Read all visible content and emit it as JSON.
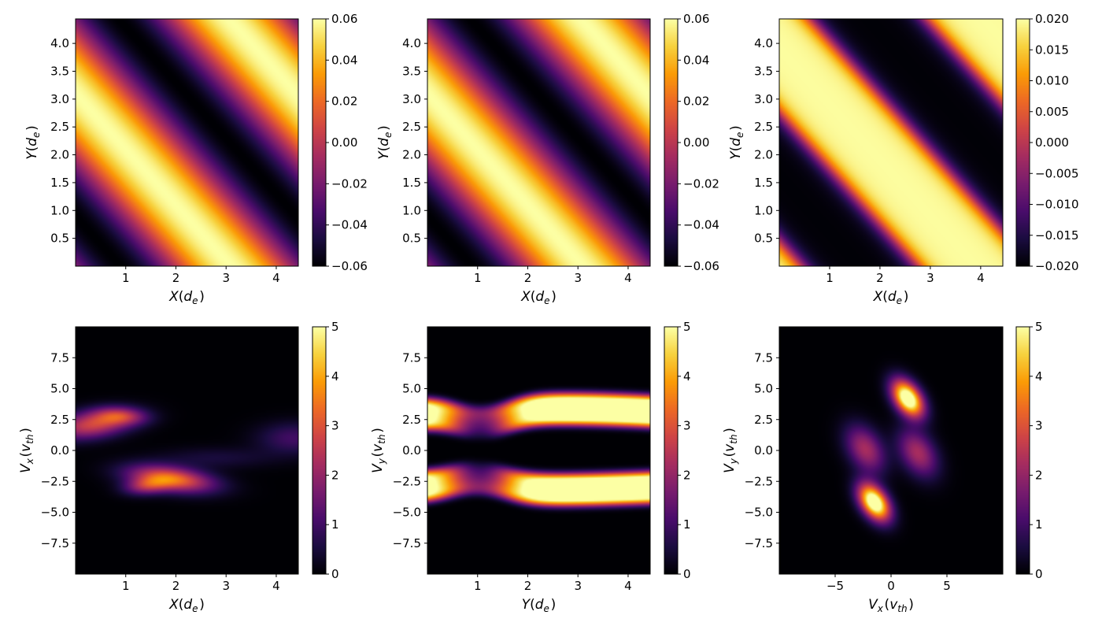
{
  "colormap": "inferno",
  "colormap_stops": [
    "#000004",
    "#1b0c41",
    "#4a0c6b",
    "#781c6d",
    "#a52c60",
    "#cf4446",
    "#ed6925",
    "#fb9b06",
    "#f7d13d",
    "#fcffa4"
  ],
  "chart_data": [
    {
      "type": "heatmap",
      "panel": "top-left",
      "xlabel": "X(d_e)",
      "ylabel": "Y(d_e)",
      "xlim": [
        0,
        4.44
      ],
      "ylim": [
        0,
        4.44
      ],
      "xticks": [
        1,
        2,
        3,
        4
      ],
      "yticks": [
        0.5,
        1.0,
        1.5,
        2.0,
        2.5,
        3.0,
        3.5,
        4.0
      ],
      "ytick_labels": [
        "0.5",
        "1.0",
        "1.5",
        "2.0",
        "2.5",
        "3.0",
        "3.5",
        "4.0"
      ],
      "clim": [
        -0.06,
        0.06
      ],
      "colorbar_ticks": [
        "0.06",
        "0.04",
        "0.02",
        "0.00",
        "−0.02",
        "−0.04",
        "−0.06"
      ],
      "pattern": "diagonal wave, amplitude 0.06, bright stripes near x+y=3.1 and x+y=7.5, dark stripes near x+y=1.4 and x+y=5.8",
      "pattern_key": "waveA"
    },
    {
      "type": "heatmap",
      "panel": "top-middle",
      "xlabel": "X(d_e)",
      "ylabel": "Y(d_e)",
      "xlim": [
        0,
        4.44
      ],
      "ylim": [
        0,
        4.44
      ],
      "xticks": [
        1,
        2,
        3,
        4
      ],
      "yticks": [
        0.5,
        1.0,
        1.5,
        2.0,
        2.5,
        3.0,
        3.5,
        4.0
      ],
      "ytick_labels": [
        "0.5",
        "1.0",
        "1.5",
        "2.0",
        "2.5",
        "3.0",
        "3.5",
        "4.0"
      ],
      "clim": [
        -0.06,
        0.06
      ],
      "colorbar_ticks": [
        "0.06",
        "0.04",
        "0.02",
        "0.00",
        "−0.02",
        "−0.04",
        "−0.06"
      ],
      "pattern": "diagonal wave, same as top-left",
      "pattern_key": "waveA"
    },
    {
      "type": "heatmap",
      "panel": "top-right",
      "xlabel": "X(d_e)",
      "ylabel": "Y(d_e)",
      "xlim": [
        0,
        4.44
      ],
      "ylim": [
        0,
        4.44
      ],
      "xticks": [
        1,
        2,
        3,
        4
      ],
      "yticks": [
        0.5,
        1.0,
        1.5,
        2.0,
        2.5,
        3.0,
        3.5,
        4.0
      ],
      "ytick_labels": [
        "0.5",
        "1.0",
        "1.5",
        "2.0",
        "2.5",
        "3.0",
        "3.5",
        "4.0"
      ],
      "clim": [
        -0.02,
        0.02
      ],
      "colorbar_ticks": [
        "0.020",
        "0.015",
        "0.010",
        "0.005",
        "0.000",
        "−0.005",
        "−0.010",
        "−0.015",
        "−0.020"
      ],
      "pattern": "saturated diagonal bands: wide bright band centred near x+y=3.9, dark bands near x+y=1.6 and x+y=6.2",
      "pattern_key": "waveB"
    },
    {
      "type": "heatmap",
      "panel": "bottom-left",
      "xlabel": "X(d_e)",
      "ylabel": "V_x(v_th)",
      "xlim": [
        0,
        4.44
      ],
      "ylim": [
        -10,
        10
      ],
      "xticks": [
        1,
        2,
        3,
        4
      ],
      "yticks": [
        7.5,
        5.0,
        2.5,
        0.0,
        -2.5,
        -5.0,
        -7.5
      ],
      "ytick_labels": [
        "7.5",
        "5.0",
        "2.5",
        "0.0",
        "−2.5",
        "−5.0",
        "−7.5"
      ],
      "clim": [
        0,
        5
      ],
      "colorbar_ticks": [
        "5",
        "4",
        "3",
        "2",
        "1",
        "0"
      ],
      "pattern": "phase-space vortex: positive-velocity lobe near x=0.3 v=2, negative-velocity lobe near x=1.8 v=-2.2, faint lobe near x=4.3 v=1",
      "pattern_key": "phaseX"
    },
    {
      "type": "heatmap",
      "panel": "bottom-middle",
      "xlabel": "Y(d_e)",
      "ylabel": "V_y(v_th)",
      "xlim": [
        0,
        4.44
      ],
      "ylim": [
        -10,
        10
      ],
      "xticks": [
        1,
        2,
        3,
        4
      ],
      "yticks": [
        7.5,
        5.0,
        2.5,
        0.0,
        -2.5,
        -5.0,
        -7.5
      ],
      "ytick_labels": [
        "7.5",
        "5.0",
        "2.5",
        "0.0",
        "−2.5",
        "−5.0",
        "−7.5"
      ],
      "clim": [
        0,
        5
      ],
      "colorbar_ticks": [
        "5",
        "4",
        "3",
        "2",
        "1",
        "0"
      ],
      "pattern": "two saturated beams near v=+3 and v=-3 deflected around a trapped hole near y=1",
      "pattern_key": "phaseY"
    },
    {
      "type": "heatmap",
      "panel": "bottom-right",
      "xlabel": "V_x(v_th)",
      "ylabel": "V_y(v_th)",
      "xlim": [
        -10,
        10
      ],
      "ylim": [
        -10,
        10
      ],
      "xticks": [
        -5,
        0,
        5
      ],
      "xtick_labels": [
        "−5",
        "0",
        "5"
      ],
      "yticks": [
        7.5,
        5.0,
        2.5,
        0.0,
        -2.5,
        -5.0,
        -7.5
      ],
      "ytick_labels": [
        "7.5",
        "5.0",
        "2.5",
        "0.0",
        "−2.5",
        "−5.0",
        "−7.5"
      ],
      "clim": [
        0,
        5
      ],
      "colorbar_ticks": [
        "5",
        "4",
        "3",
        "2",
        "1",
        "0"
      ],
      "pattern": "velocity distribution: bright blobs near (1.5, 4.2) and (-1.5, -4.2), weaker blobs near (-2.5, 0) and (2.5, 0)",
      "pattern_key": "vspace"
    }
  ]
}
